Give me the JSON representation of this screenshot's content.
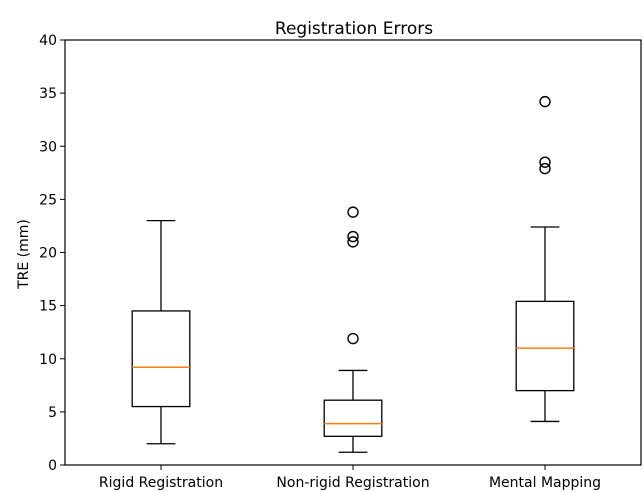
{
  "chart_data": {
    "type": "box",
    "title": "Registration Errors",
    "xlabel": "",
    "ylabel": "TRE (mm)",
    "ylim": [
      0,
      40
    ],
    "yticks": [
      0,
      5,
      10,
      15,
      20,
      25,
      30,
      35,
      40
    ],
    "grid": false,
    "categories": [
      "Rigid Registration",
      "Non-rigid Registration",
      "Mental Mapping"
    ],
    "boxes": [
      {
        "whisker_low": 2.0,
        "q1": 5.5,
        "median": 9.2,
        "q3": 14.5,
        "whisker_high": 23.0,
        "outliers": []
      },
      {
        "whisker_low": 1.2,
        "q1": 2.7,
        "median": 3.9,
        "q3": 6.1,
        "whisker_high": 8.9,
        "outliers": [
          11.9,
          21.0,
          21.5,
          23.8
        ]
      },
      {
        "whisker_low": 4.1,
        "q1": 7.0,
        "median": 11.0,
        "q3": 15.4,
        "whisker_high": 22.4,
        "outliers": [
          27.9,
          28.5,
          34.2
        ]
      }
    ],
    "colors": {
      "box": "#000000",
      "median": "#ff7f0e",
      "outlier": "#000000"
    }
  }
}
